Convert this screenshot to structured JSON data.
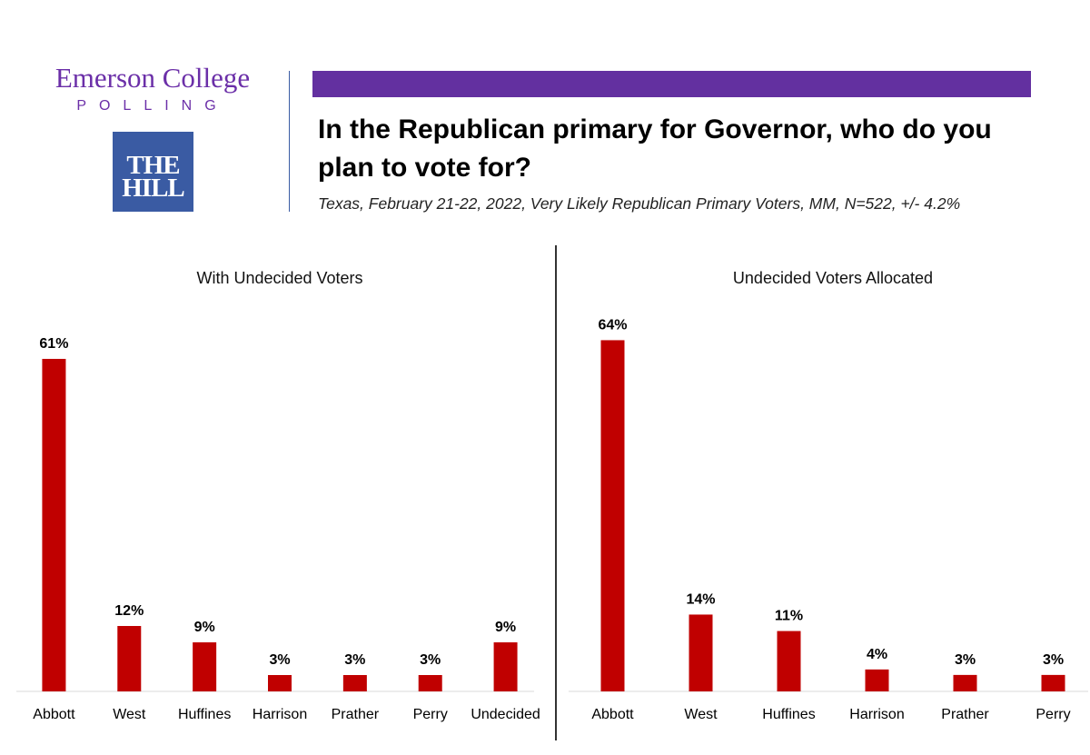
{
  "brand": {
    "name": "Emerson College",
    "sub": "POLLING"
  },
  "hill_logo": {
    "line1": "THE",
    "line2": "HILL"
  },
  "header": {
    "question": "In the Republican primary for Governor, who do you plan to vote for?",
    "subtitle": "Texas, February 21-22, 2022, Very Likely Republican Primary Voters, MM, N=522, +/- 4.2%"
  },
  "colors": {
    "bar": "#c00000",
    "accent_purple": "#6330a0",
    "hill_blue": "#3a5ba3"
  },
  "chart_data": [
    {
      "type": "bar",
      "title": "With Undecided Voters",
      "categories": [
        "Abbott",
        "West",
        "Huffines",
        "Harrison",
        "Prather",
        "Perry",
        "Undecided"
      ],
      "values": [
        61,
        12,
        9,
        3,
        3,
        3,
        9
      ],
      "labels": [
        "61%",
        "12%",
        "9%",
        "3%",
        "3%",
        "3%",
        "9%"
      ],
      "unit": "%",
      "ylim": [
        0,
        65
      ],
      "grid": false,
      "legend": "none"
    },
    {
      "type": "bar",
      "title": "Undecided Voters Allocated",
      "categories": [
        "Abbott",
        "West",
        "Huffines",
        "Harrison",
        "Prather",
        "Perry"
      ],
      "values": [
        64,
        14,
        11,
        4,
        3,
        3
      ],
      "labels": [
        "64%",
        "14%",
        "11%",
        "4%",
        "3%",
        "3%"
      ],
      "unit": "%",
      "ylim": [
        0,
        65
      ],
      "grid": false,
      "legend": "none"
    }
  ]
}
